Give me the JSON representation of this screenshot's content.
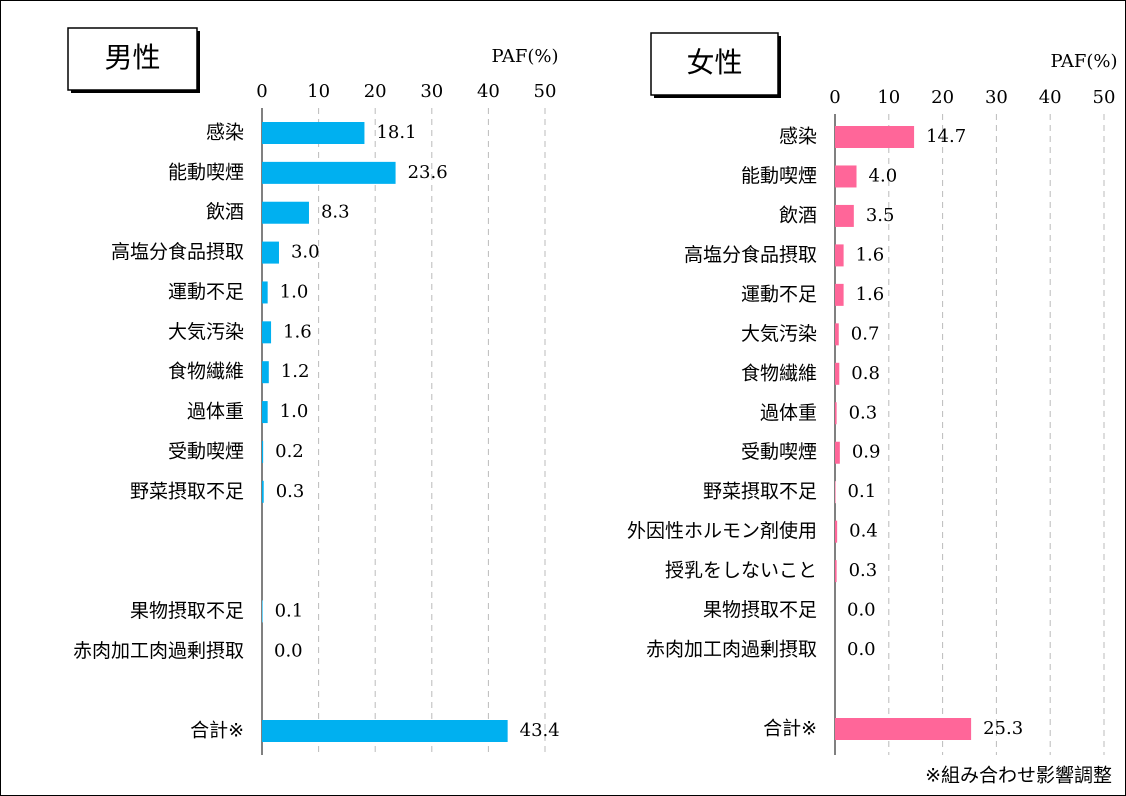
{
  "chart_data": [
    {
      "type": "barh",
      "title": "男性",
      "axis_label": "PAF(%)",
      "color": "#00b0f0",
      "categories": [
        "感染",
        "能動喫煙",
        "飲酒",
        "高塩分食品摂取",
        "運動不足",
        "大気汚染",
        "食物繊維",
        "過体重",
        "受動喫煙",
        "野菜摂取不足",
        null,
        null,
        "果物摂取不足",
        "赤肉加工肉過剰摂取",
        null,
        "合計※"
      ],
      "values": [
        18.1,
        23.6,
        8.3,
        3.0,
        1.0,
        1.6,
        1.2,
        1.0,
        0.2,
        0.3,
        null,
        null,
        0.1,
        0.0,
        null,
        43.4
      ],
      "value_labels": [
        "18.1",
        "23.6",
        "8.3",
        "3.0",
        "1.0",
        "1.6",
        "1.2",
        "1.0",
        "0.2",
        "0.3",
        null,
        null,
        "0.1",
        "0.0",
        null,
        "43.4"
      ],
      "xlim": [
        0,
        50
      ],
      "xticks": [
        0,
        10,
        20,
        30,
        40,
        50
      ],
      "grid": true
    },
    {
      "type": "barh",
      "title": "女性",
      "axis_label": "PAF(%)",
      "color": "#ff6699",
      "categories": [
        "感染",
        "能動喫煙",
        "飲酒",
        "高塩分食品摂取",
        "運動不足",
        "大気汚染",
        "食物繊維",
        "過体重",
        "受動喫煙",
        "野菜摂取不足",
        "外因性ホルモン剤使用",
        "授乳をしないこと",
        "果物摂取不足",
        "赤肉加工肉過剰摂取",
        null,
        "合計※"
      ],
      "values": [
        14.7,
        4.0,
        3.5,
        1.6,
        1.6,
        0.7,
        0.8,
        0.3,
        0.9,
        0.1,
        0.4,
        0.3,
        0.0,
        0.0,
        null,
        25.3
      ],
      "value_labels": [
        "14.7",
        "4.0",
        "3.5",
        "1.6",
        "1.6",
        "0.7",
        "0.8",
        "0.3",
        "0.9",
        "0.1",
        "0.4",
        "0.3",
        "0.0",
        "0.0",
        null,
        "25.3"
      ],
      "xlim": [
        0,
        50
      ],
      "xticks": [
        0,
        10,
        20,
        30,
        40,
        50
      ],
      "grid": true
    }
  ],
  "note": "※組み合わせ影響調整"
}
